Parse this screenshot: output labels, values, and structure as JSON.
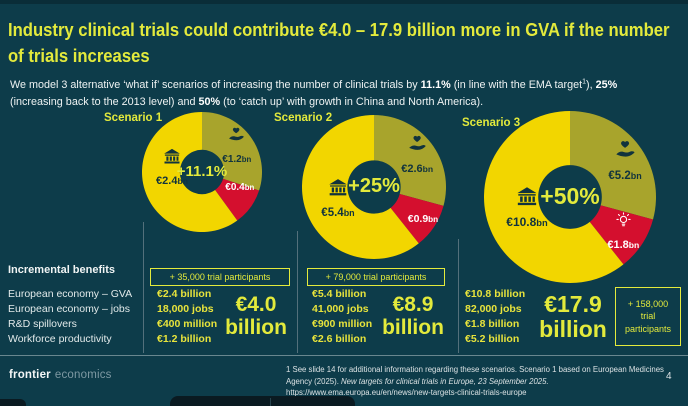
{
  "colors": {
    "background": "#0d3c4a",
    "accent_yellow_green": "#e3ea3c",
    "donut_yellow": "#f2d600",
    "donut_olive": "#a8a42c",
    "donut_red": "#d40f2e",
    "body_text": "#eef3f3"
  },
  "title": "Industry clinical trials could contribute €4.0 – 17.9 billion more in GVA if the number of trials increases",
  "intro": {
    "part1": "We model 3 alternative ‘what if’ scenarios of increasing the number of clinical trials by ",
    "bold1": "11.1%",
    "part2": " (in line with the EMA target",
    "sup": "1",
    "part3": "), ",
    "bold2": "25%",
    "part4": " (increasing back to the 2013 level) and ",
    "bold3": "50%",
    "part5": " (to ‘catch up’ with growth in China and North America)."
  },
  "chart_data": [
    {
      "type": "pie",
      "subtype": "donut",
      "title": "Scenario 1",
      "center_label": "+11.1%",
      "unit": "EUR billion",
      "slices": [
        {
          "name": "Workforce productivity",
          "label": "€1.2bn",
          "value": 1.2,
          "color": "#a8a42c",
          "icon": "heart-in-hand"
        },
        {
          "name": "R&D spillovers",
          "label": "€0.4bn",
          "value": 0.4,
          "color": "#d40f2e",
          "icon": "lightbulb"
        },
        {
          "name": "European economy – GVA",
          "label": "€2.4bn",
          "value": 2.4,
          "color": "#f2d600",
          "icon": "bank"
        }
      ]
    },
    {
      "type": "pie",
      "subtype": "donut",
      "title": "Scenario 2",
      "center_label": "+25%",
      "unit": "EUR billion",
      "slices": [
        {
          "name": "Workforce productivity",
          "label": "€2.6bn",
          "value": 2.6,
          "color": "#a8a42c",
          "icon": "heart-in-hand"
        },
        {
          "name": "R&D spillovers",
          "label": "€0.9bn",
          "value": 0.9,
          "color": "#d40f2e",
          "icon": "lightbulb"
        },
        {
          "name": "European economy – GVA",
          "label": "€5.4bn",
          "value": 5.4,
          "color": "#f2d600",
          "icon": "bank"
        }
      ]
    },
    {
      "type": "pie",
      "subtype": "donut",
      "title": "Scenario 3",
      "center_label": "+50%",
      "unit": "EUR billion",
      "slices": [
        {
          "name": "Workforce productivity",
          "label": "€5.2bn",
          "value": 5.2,
          "color": "#a8a42c",
          "icon": "heart-in-hand"
        },
        {
          "name": "R&D spillovers",
          "label": "€1.8bn",
          "value": 1.8,
          "color": "#d40f2e",
          "icon": "lightbulb"
        },
        {
          "name": "European economy – GVA",
          "label": "€10.8bn",
          "value": 10.8,
          "color": "#f2d600",
          "icon": "bank"
        }
      ]
    },
    {
      "type": "table",
      "title": "Incremental benefits",
      "row_labels": [
        "European economy – GVA",
        "European economy – jobs",
        "R&D spillovers",
        "Workforce productivity"
      ],
      "columns": [
        {
          "name": "Scenario 1",
          "participants": "+ 35,000 trial participants",
          "values": [
            "€2.4 billion",
            "18,000 jobs",
            "€400 million",
            "€1.2 billion"
          ],
          "total_value": "€4.0",
          "total_unit": "billion"
        },
        {
          "name": "Scenario 2",
          "participants": "+ 79,000 trial participants",
          "values": [
            "€5.4 billion",
            "41,000 jobs",
            "€900 million",
            "€2.6 billion"
          ],
          "total_value": "€8.9",
          "total_unit": "billion"
        },
        {
          "name": "Scenario 3",
          "participants": "+ 158,000 trial participants",
          "values": [
            "€10.8 billion",
            "82,000 jobs",
            "€1.8 billion",
            "€5.2 billion"
          ],
          "total_value": "€17.9",
          "total_unit": "billion"
        }
      ]
    }
  ],
  "footer": {
    "logo_bold": "frontier",
    "logo_light": "economics",
    "note_part1": "1  See slide 14 for additional information regarding these scenarios. Scenario 1 based on European Medicines Agency (2025). ",
    "note_italic": "New targets for clinical trials in Europe, 23 September 2025.",
    "note_part2": "  https://www.ema.europa.eu/en/news/new-targets-clinical-trials-europe",
    "page_number": "4"
  }
}
